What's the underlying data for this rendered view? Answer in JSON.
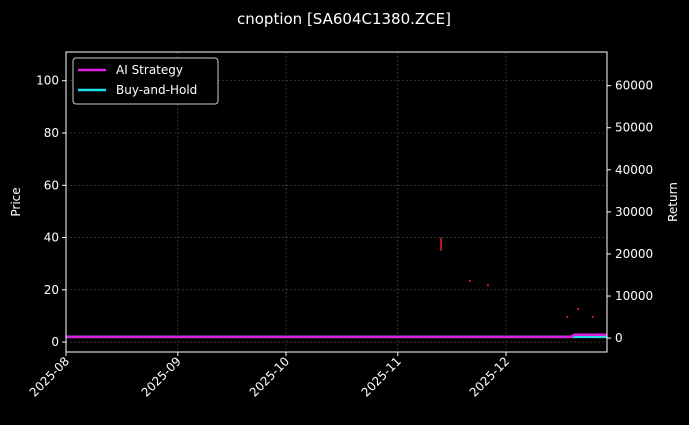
{
  "chart_data": {
    "type": "line",
    "title": "cnoption [SA604C1380.ZCE]",
    "ylabel_left": "Price",
    "ylabel_right": "Return",
    "xlabel": "",
    "xlim": [
      "2025-08-01",
      "2025-12-29"
    ],
    "ylim_left": [
      -3.8,
      111
    ],
    "ylim_right": [
      -3300,
      68000
    ],
    "x_ticks": [
      "2025-08",
      "2025-09",
      "2025-10",
      "2025-11",
      "2025-12"
    ],
    "y_ticks_left": [
      0,
      20,
      40,
      60,
      80,
      100
    ],
    "y_ticks_right": [
      0,
      10000,
      20000,
      30000,
      40000,
      50000,
      60000
    ],
    "grid": true,
    "legend_position": "top-left",
    "series": [
      {
        "name": "AI Strategy",
        "axis": "right",
        "color": "#e020e0",
        "points": [
          [
            "2025-08-01",
            300
          ],
          [
            "2025-12-19",
            300
          ],
          [
            "2025-12-20",
            800
          ],
          [
            "2025-12-29",
            800
          ]
        ]
      },
      {
        "name": "Buy-and-Hold",
        "axis": "right",
        "color": "#20e0e8",
        "points": [
          [
            "2025-08-01",
            300
          ],
          [
            "2025-12-29",
            300
          ]
        ]
      }
    ],
    "price_marks": {
      "axis": "left",
      "color": "#ff2020",
      "segments": [
        [
          "2025-11-13",
          35,
          40
        ]
      ],
      "points": [
        [
          "2025-11-21",
          23.4
        ],
        [
          "2025-11-26",
          21.8
        ],
        [
          "2025-12-18",
          9.6
        ],
        [
          "2025-12-21",
          12.6
        ],
        [
          "2025-12-25",
          9.6
        ]
      ]
    }
  }
}
